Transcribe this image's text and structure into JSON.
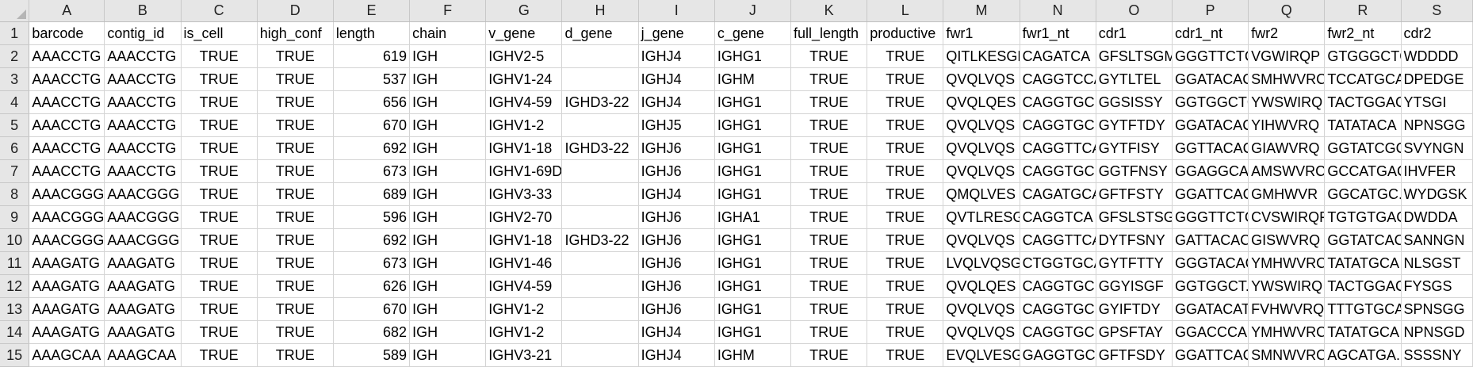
{
  "columns": [
    "A",
    "B",
    "C",
    "D",
    "E",
    "F",
    "G",
    "H",
    "I",
    "J",
    "K",
    "L",
    "M",
    "N",
    "O",
    "P",
    "Q",
    "R",
    "S"
  ],
  "row_numbers": [
    1,
    2,
    3,
    4,
    5,
    6,
    7,
    8,
    9,
    10,
    11,
    12,
    13,
    14,
    15
  ],
  "headers": [
    "barcode",
    "contig_id",
    "is_cell",
    "high_conf",
    "length",
    "chain",
    "v_gene",
    "d_gene",
    "j_gene",
    "c_gene",
    "full_length",
    "productive",
    "fwr1",
    "fwr1_nt",
    "cdr1",
    "cdr1_nt",
    "fwr2",
    "fwr2_nt",
    "cdr2"
  ],
  "rows": [
    [
      "AAACCTG",
      "AAACCTG",
      "TRUE",
      "TRUE",
      "619",
      "IGH",
      "IGHV2-5",
      "",
      "IGHJ4",
      "IGHG1",
      "TRUE",
      "TRUE",
      "QITLKESGF",
      "CAGATCA",
      "GFSLTSGM",
      "GGGTTCTC",
      "VGWIRQP",
      "GTGGGCTC",
      "WDDDD"
    ],
    [
      "AAACCTG",
      "AAACCTG",
      "TRUE",
      "TRUE",
      "537",
      "IGH",
      "IGHV1-24",
      "",
      "IGHJ4",
      "IGHM",
      "TRUE",
      "TRUE",
      "QVQLVQS",
      "CAGGTCCA",
      "GYTLTEL",
      "GGATACAC",
      "SMHWVRC",
      "TCCATGCA",
      "DPEDGE"
    ],
    [
      "AAACCTG",
      "AAACCTG",
      "TRUE",
      "TRUE",
      "656",
      "IGH",
      "IGHV4-59",
      "IGHD3-22",
      "IGHJ4",
      "IGHG1",
      "TRUE",
      "TRUE",
      "QVQLQES",
      "CAGGTGC.",
      "GGSISSY",
      "GGTGGCTC",
      "YWSWIRQ",
      "TACTGGAC",
      "YTSGI"
    ],
    [
      "AAACCTG",
      "AAACCTG",
      "TRUE",
      "TRUE",
      "670",
      "IGH",
      "IGHV1-2",
      "",
      "IGHJ5",
      "IGHG1",
      "TRUE",
      "TRUE",
      "QVQLVQS",
      "CAGGTGC.",
      "GYTFTDY",
      "GGATACAC",
      "YIHWVRQ",
      "TATATACA",
      "NPNSGG"
    ],
    [
      "AAACCTG",
      "AAACCTG",
      "TRUE",
      "TRUE",
      "692",
      "IGH",
      "IGHV1-18",
      "IGHD3-22",
      "IGHJ6",
      "IGHG1",
      "TRUE",
      "TRUE",
      "QVQLVQS",
      "CAGGTTCA",
      "GYTFISY",
      "GGTTACAC",
      "GIAWVRQ",
      "GGTATCGC",
      "SVYNGN"
    ],
    [
      "AAACCTG",
      "AAACCTG",
      "TRUE",
      "TRUE",
      "673",
      "IGH",
      "IGHV1-69D",
      "",
      "IGHJ6",
      "IGHG1",
      "TRUE",
      "TRUE",
      "QVQLVQS",
      "CAGGTGC.",
      "GGTFNSY",
      "GGAGGCA",
      "AMSWVRC",
      "GCCATGAC",
      "IHVFER"
    ],
    [
      "AAACGGG",
      "AAACGGG",
      "TRUE",
      "TRUE",
      "689",
      "IGH",
      "IGHV3-33",
      "",
      "IGHJ4",
      "IGHG1",
      "TRUE",
      "TRUE",
      "QMQLVES",
      "CAGATGCA",
      "GFTFSTY",
      "GGATTCAC",
      "GMHWVR",
      "GGCATGC.",
      "WYDGSK"
    ],
    [
      "AAACGGG",
      "AAACGGG",
      "TRUE",
      "TRUE",
      "596",
      "IGH",
      "IGHV2-70",
      "",
      "IGHJ6",
      "IGHA1",
      "TRUE",
      "TRUE",
      "QVTLRESG",
      "CAGGTCA",
      "GFSLSTSGI",
      "GGGTTCTC",
      "CVSWIRQF",
      "TGTGTGAC",
      "DWDDA"
    ],
    [
      "AAACGGG",
      "AAACGGG",
      "TRUE",
      "TRUE",
      "692",
      "IGH",
      "IGHV1-18",
      "IGHD3-22",
      "IGHJ6",
      "IGHG1",
      "TRUE",
      "TRUE",
      "QVQLVQS",
      "CAGGTTCA",
      "DYTFSNY",
      "GATTACAC",
      "GISWVRQ",
      "GGTATCAC",
      "SANNGN"
    ],
    [
      "AAAGATG",
      "AAAGATG",
      "TRUE",
      "TRUE",
      "673",
      "IGH",
      "IGHV1-46",
      "",
      "IGHJ6",
      "IGHG1",
      "TRUE",
      "TRUE",
      "LVQLVQSG",
      "CTGGTGCA",
      "GYTFTTY",
      "GGGTACAC",
      "YMHWVRC",
      "TATATGCA",
      "NLSGST"
    ],
    [
      "AAAGATG",
      "AAAGATG",
      "TRUE",
      "TRUE",
      "626",
      "IGH",
      "IGHV4-59",
      "",
      "IGHJ6",
      "IGHG1",
      "TRUE",
      "TRUE",
      "QVQLQES",
      "CAGGTGC.",
      "GGYISGF",
      "GGTGGCT.",
      "YWSWIRQ",
      "TACTGGAC",
      "FYSGS"
    ],
    [
      "AAAGATG",
      "AAAGATG",
      "TRUE",
      "TRUE",
      "670",
      "IGH",
      "IGHV1-2",
      "",
      "IGHJ6",
      "IGHG1",
      "TRUE",
      "TRUE",
      "QVQLVQS",
      "CAGGTGC.",
      "GYIFTDY",
      "GGATACAT",
      "FVHWVRQ",
      "TTTGTGCA",
      "SPNSGG"
    ],
    [
      "AAAGATG",
      "AAAGATG",
      "TRUE",
      "TRUE",
      "682",
      "IGH",
      "IGHV1-2",
      "",
      "IGHJ4",
      "IGHG1",
      "TRUE",
      "TRUE",
      "QVQLVQS",
      "CAGGTGC.",
      "GPSFTAY",
      "GGACCCA",
      "YMHWVRC",
      "TATATGCA",
      "NPNSGD"
    ],
    [
      "AAAGCAA",
      "AAAGCAA",
      "TRUE",
      "TRUE",
      "589",
      "IGH",
      "IGHV3-21",
      "",
      "IGHJ4",
      "IGHM",
      "TRUE",
      "TRUE",
      "EVQLVESG",
      "GAGGTGC",
      "GFTFSDY",
      "GGATTCAC",
      "SMNWVRC",
      "AGCATGA.",
      "SSSSNY"
    ]
  ]
}
